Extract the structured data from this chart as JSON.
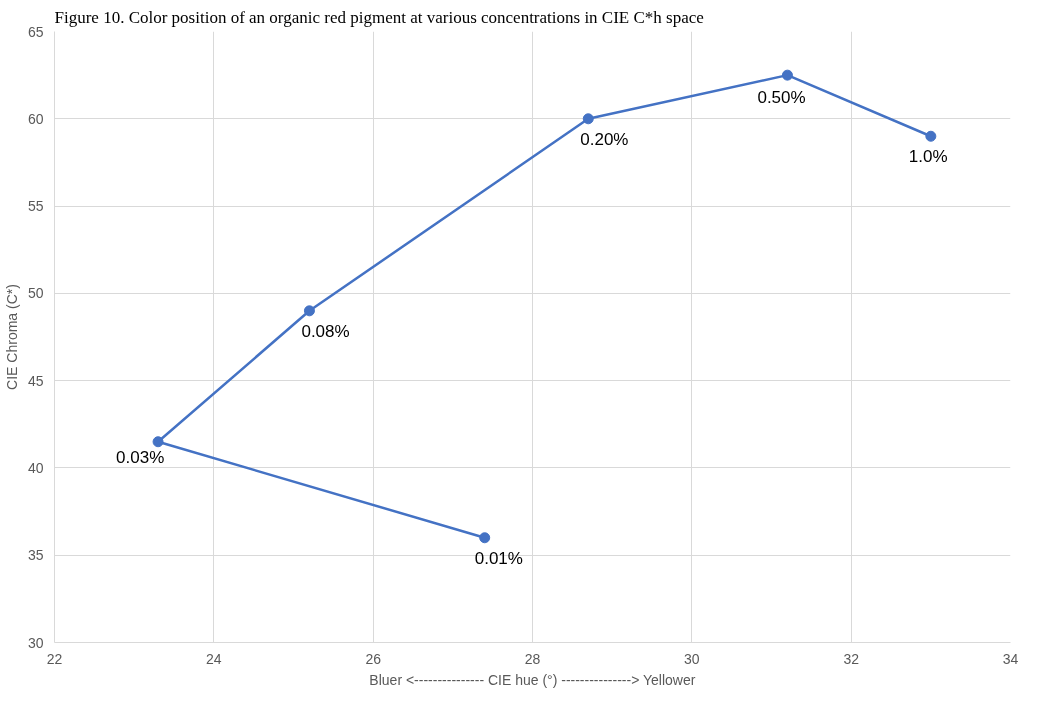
{
  "chart_data": {
    "type": "line",
    "title": "Figure 10. Color position of an organic red pigment at various concentrations in CIE C*h space",
    "xlabel": "Bluer <--------------- CIE hue (°) ---------------> Yellower",
    "ylabel": "CIE Chroma (C*)",
    "x": [
      27.4,
      23.3,
      25.2,
      28.7,
      31.2,
      33.0
    ],
    "series": [
      {
        "color": "#4472c4",
        "values": [
          36,
          41.5,
          49,
          60,
          62.5,
          59
        ]
      }
    ],
    "annotations": [
      {
        "text": "0.01%",
        "x": 27.4,
        "y": 36
      },
      {
        "text": "0.03%",
        "x": 23.3,
        "y": 41.5
      },
      {
        "text": "0.08%",
        "x": 25.2,
        "y": 49
      },
      {
        "text": "0.20%",
        "x": 28.7,
        "y": 60
      },
      {
        "text": "0.50%",
        "x": 31.2,
        "y": 62.5
      },
      {
        "text": "1.0%",
        "x": 33.0,
        "y": 59
      }
    ],
    "xlim": [
      22,
      34
    ],
    "ylim": [
      30,
      65
    ],
    "xticks": [
      22,
      24,
      26,
      28,
      30,
      32,
      34
    ],
    "yticks": [
      30,
      35,
      40,
      45,
      50,
      55,
      60,
      65
    ],
    "grid": true,
    "marker": "circle",
    "line_style": "solid"
  }
}
